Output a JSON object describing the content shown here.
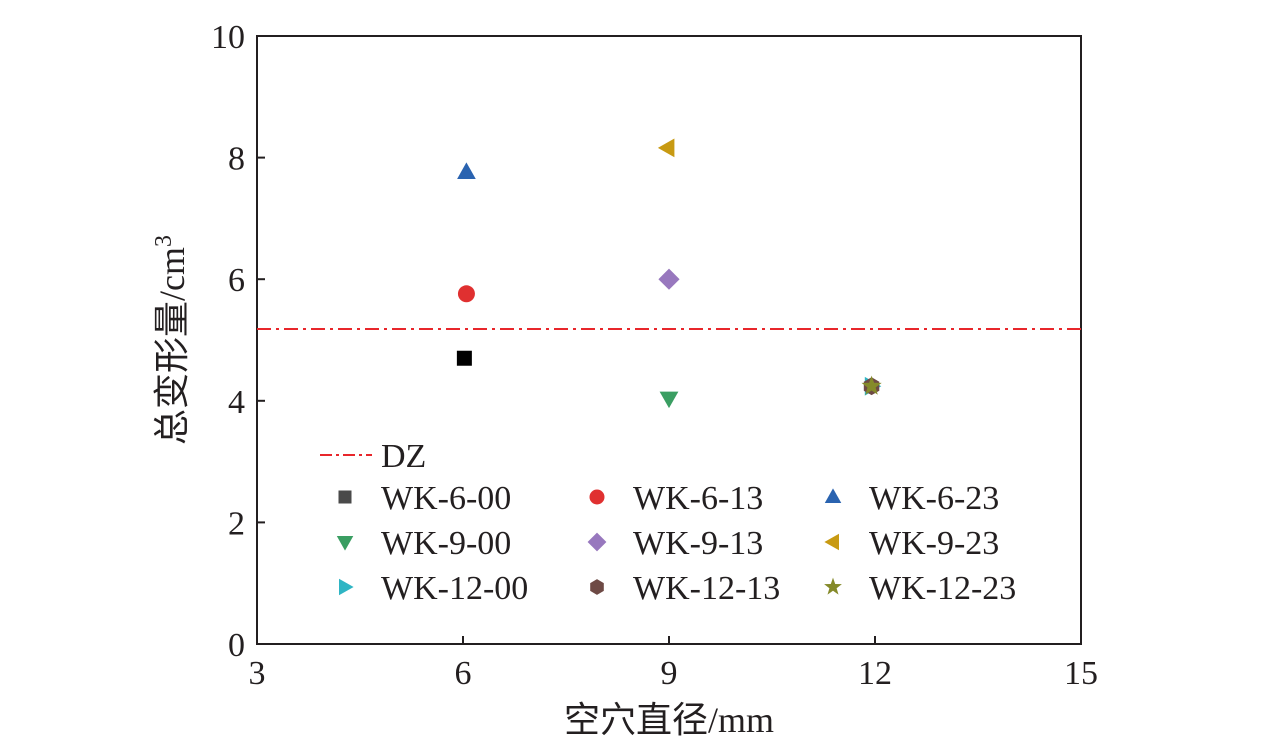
{
  "chart_data": {
    "type": "scatter",
    "title": "",
    "xlabel": "空穴直径/mm",
    "ylabel_main": "总变形量/cm",
    "ylabel_sup": "3",
    "xlim": [
      3,
      15
    ],
    "ylim": [
      0,
      10
    ],
    "xticks": [
      "3",
      "6",
      "9",
      "12",
      "15"
    ],
    "yticks": [
      "0",
      "2",
      "4",
      "6",
      "8",
      "10"
    ],
    "xtick_values": [
      3,
      6,
      9,
      12,
      15
    ],
    "ytick_values": [
      0,
      2,
      4,
      6,
      8,
      10
    ],
    "grid": false,
    "legend_position": "lower-left",
    "reference_line": {
      "name": "DZ",
      "y": 5.18,
      "color": "#e8262b",
      "style": "dash-dot"
    },
    "series": [
      {
        "name": "WK-6-00",
        "marker": "square",
        "color": "#000000",
        "legend_color": "#4a4a4a",
        "x": 6.02,
        "y": 4.7
      },
      {
        "name": "WK-6-13",
        "marker": "circle",
        "color": "#e03030",
        "x": 6.05,
        "y": 5.76
      },
      {
        "name": "WK-6-23",
        "marker": "triangle-up",
        "color": "#2a63b0",
        "x": 6.05,
        "y": 7.76
      },
      {
        "name": "WK-9-00",
        "marker": "triangle-down",
        "color": "#3a9e62",
        "x": 9.0,
        "y": 4.04
      },
      {
        "name": "WK-9-13",
        "marker": "diamond",
        "color": "#9878be",
        "x": 9.0,
        "y": 6.0
      },
      {
        "name": "WK-9-23",
        "marker": "triangle-left",
        "color": "#c89a12",
        "x": 8.98,
        "y": 8.16
      },
      {
        "name": "WK-12-00",
        "marker": "triangle-right",
        "color": "#2fb5c4",
        "x": 11.95,
        "y": 4.24
      },
      {
        "name": "WK-12-13",
        "marker": "hexagon",
        "color": "#6e4a45",
        "x": 11.95,
        "y": 4.24
      },
      {
        "name": "WK-12-23",
        "marker": "star",
        "color": "#858a2a",
        "x": 11.95,
        "y": 4.24
      }
    ]
  }
}
